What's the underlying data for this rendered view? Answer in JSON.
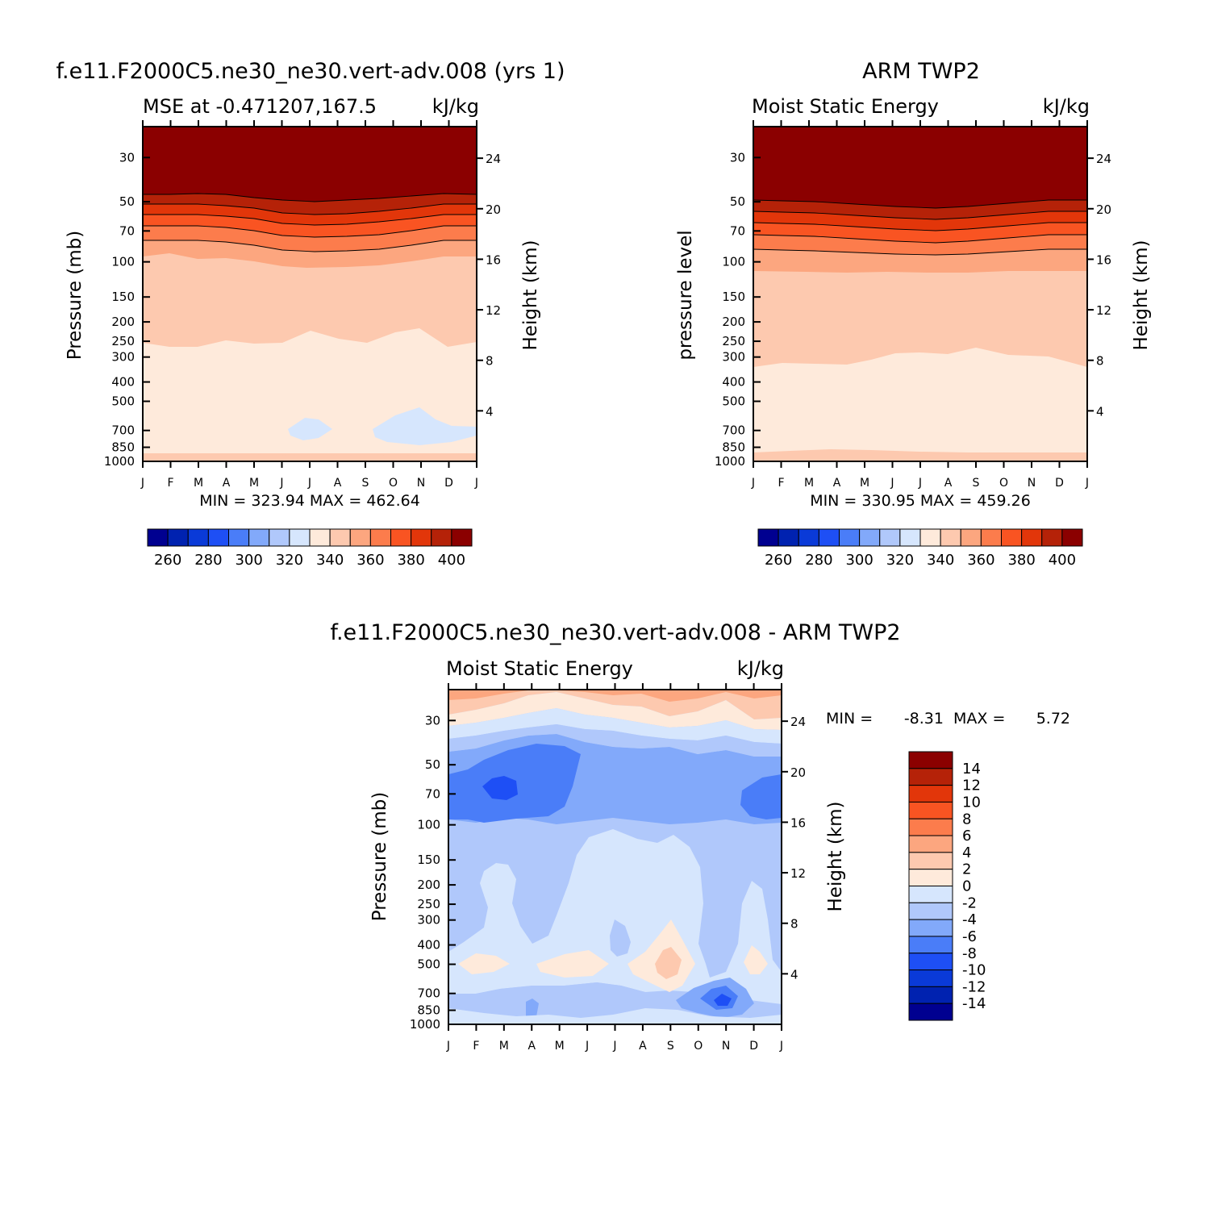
{
  "chart_data": [
    {
      "type": "contour",
      "title": "f.e11.F2000C5.ne30_ne30.vert-adv.008 (yrs 1)",
      "subtitle_left": "MSE at -0.471207,167.5",
      "subtitle_right": "kJ/kg",
      "ylabel": "Pressure (mb)",
      "y2label": "Height (km)",
      "minmax": "MIN = 323.94 MAX = 462.64",
      "x_ticks": [
        "J",
        "F",
        "M",
        "A",
        "M",
        "J",
        "J",
        "A",
        "S",
        "O",
        "N",
        "D",
        "J"
      ],
      "p_ticks": [
        30,
        50,
        70,
        100,
        150,
        200,
        250,
        300,
        400,
        500,
        700,
        850,
        1000
      ],
      "h_ticks": [
        4,
        8,
        12,
        16,
        20,
        24
      ],
      "colorbar_labels": [
        "260",
        "280",
        "300",
        "320",
        "340",
        "360",
        "380",
        "400"
      ]
    },
    {
      "type": "contour",
      "title": "ARM TWP2",
      "subtitle_left": "Moist Static Energy",
      "subtitle_right": "kJ/kg",
      "ylabel": "pressure level",
      "y2label": "Height (km)",
      "minmax": "MIN = 330.95 MAX = 459.26",
      "x_ticks": [
        "J",
        "F",
        "M",
        "A",
        "M",
        "J",
        "J",
        "A",
        "S",
        "O",
        "N",
        "D",
        "J"
      ],
      "p_ticks": [
        30,
        50,
        70,
        100,
        150,
        200,
        250,
        300,
        400,
        500,
        700,
        850,
        1000
      ],
      "h_ticks": [
        4,
        8,
        12,
        16,
        20,
        24
      ],
      "colorbar_labels": [
        "260",
        "280",
        "300",
        "320",
        "340",
        "360",
        "380",
        "400"
      ]
    },
    {
      "type": "contour",
      "title": "f.e11.F2000C5.ne30_ne30.vert-adv.008 - ARM TWP2",
      "subtitle_left": "Moist Static Energy",
      "subtitle_right": "kJ/kg",
      "ylabel": "Pressure (mb)",
      "y2label": "Height (km)",
      "minmax_min_label": "MIN =",
      "minmax_min": "-8.31",
      "minmax_max_label": "MAX =",
      "minmax_max": "5.72",
      "x_ticks": [
        "J",
        "F",
        "M",
        "A",
        "M",
        "J",
        "J",
        "A",
        "S",
        "O",
        "N",
        "D",
        "J"
      ],
      "p_ticks": [
        30,
        50,
        70,
        100,
        150,
        200,
        250,
        300,
        400,
        500,
        700,
        850,
        1000
      ],
      "h_ticks": [
        4,
        8,
        12,
        16,
        20,
        24
      ],
      "colorbar_labels": [
        "14",
        "12",
        "10",
        "8",
        "6",
        "4",
        "2",
        "0",
        "-2",
        "-4",
        "-6",
        "-8",
        "-10",
        "-12",
        "-14"
      ]
    }
  ],
  "palette": [
    "#000090",
    "#0022b0",
    "#0a3ad8",
    "#1e4ff5",
    "#4a7df8",
    "#82a9fa",
    "#b0c8fb",
    "#d6e6fd",
    "#feeadb",
    "#fdc9af",
    "#fca67f",
    "#fc7c4c",
    "#f95422",
    "#e2360a",
    "#b52208",
    "#8b0000"
  ]
}
